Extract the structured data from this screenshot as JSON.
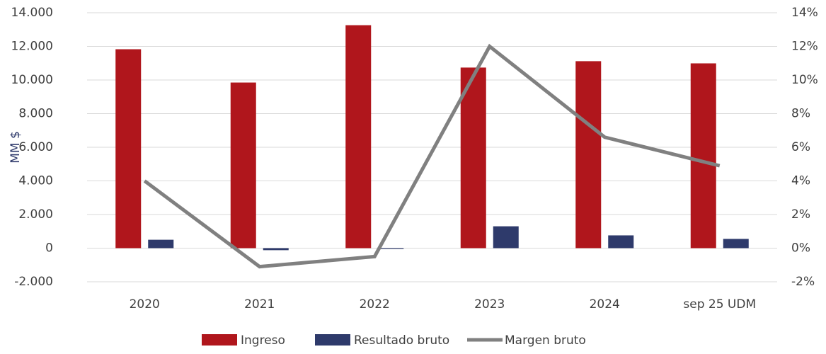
{
  "chart_data": {
    "type": "bar",
    "y_label": "MM $",
    "categories": [
      "2020",
      "2021",
      "2022",
      "2023",
      "2024",
      "sep 25 UDM"
    ],
    "series": [
      {
        "name": "Ingreso",
        "type": "bar",
        "color": "#b0161c",
        "values": [
          11830,
          9850,
          13260,
          10740,
          11120,
          10990
        ]
      },
      {
        "name": "Resultado bruto",
        "type": "bar",
        "color": "#2e3a6b",
        "values": [
          500,
          -120,
          -50,
          1300,
          760,
          550
        ]
      },
      {
        "name": "Margen bruto",
        "type": "line",
        "axis": "y2",
        "color": "#808080",
        "values": [
          4.0,
          -1.1,
          -0.5,
          12.0,
          6.6,
          4.9
        ]
      }
    ],
    "ylim": [
      -2000,
      14000
    ],
    "yticks": [
      {
        "value": -2000,
        "label": "-2.000"
      },
      0,
      {
        "value": 2000,
        "label": "2.000"
      },
      {
        "value": 4000,
        "label": "4.000"
      },
      {
        "value": 6000,
        "label": "6.000"
      },
      {
        "value": 8000,
        "label": "8.000"
      },
      {
        "value": 10000,
        "label": "10.000"
      },
      {
        "value": 12000,
        "label": "12.000"
      },
      {
        "value": 14000,
        "label": "14.000"
      }
    ],
    "y2lim": [
      -2,
      14
    ],
    "y2ticks": [
      {
        "value": -2,
        "label": "-2%"
      },
      {
        "value": 0,
        "label": "0%"
      },
      {
        "value": 2,
        "label": "2%"
      },
      {
        "value": 4,
        "label": "4%"
      },
      {
        "value": 6,
        "label": "6%"
      },
      {
        "value": 8,
        "label": "8%"
      },
      {
        "value": 10,
        "label": "10%"
      },
      {
        "value": 12,
        "label": "12%"
      },
      {
        "value": 14,
        "label": "14%"
      }
    ],
    "grid": true,
    "legend": "bottom"
  }
}
